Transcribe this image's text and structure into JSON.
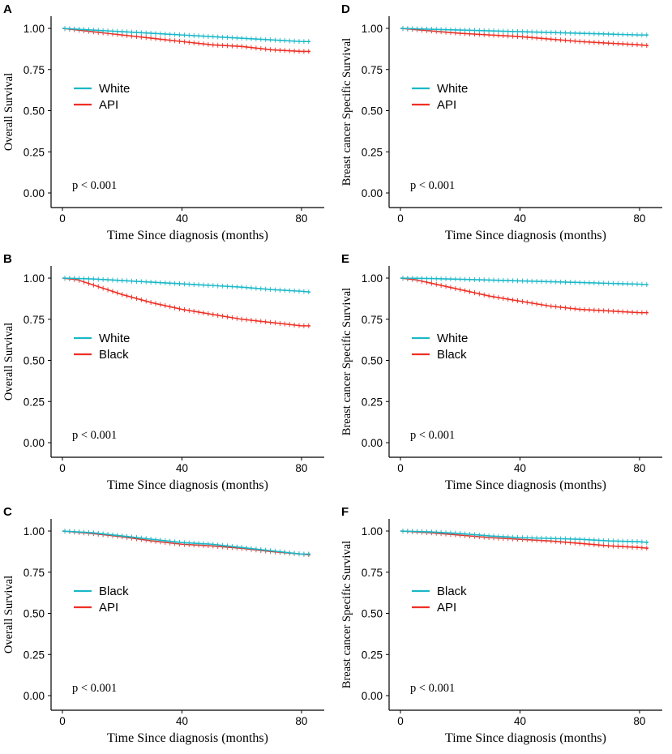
{
  "colors": {
    "white": "#1ab8c8",
    "second": "#ee2f24",
    "axis": "#000000"
  },
  "chart_data": [
    {
      "type": "line",
      "panel": "A",
      "ylabel": "Overall Survival",
      "xlabel": "Time Since diagnosis (months)",
      "xlim": [
        0,
        83
      ],
      "ylim": [
        0,
        1.0
      ],
      "xticks": [
        "0",
        "40",
        "80"
      ],
      "yticks": [
        "0.00",
        "0.25",
        "0.50",
        "0.75",
        "1.00"
      ],
      "legend": [
        "White",
        "API"
      ],
      "pvalue": "p < 0.001",
      "series": [
        {
          "name": "White",
          "x": [
            0,
            10,
            20,
            30,
            40,
            50,
            60,
            70,
            80,
            83
          ],
          "values": [
            1.0,
            0.99,
            0.98,
            0.97,
            0.96,
            0.95,
            0.94,
            0.93,
            0.92,
            0.92
          ]
        },
        {
          "name": "API",
          "x": [
            0,
            10,
            20,
            30,
            40,
            50,
            60,
            70,
            80,
            83
          ],
          "values": [
            1.0,
            0.98,
            0.96,
            0.94,
            0.92,
            0.9,
            0.89,
            0.87,
            0.86,
            0.86
          ]
        }
      ]
    },
    {
      "type": "line",
      "panel": "B",
      "ylabel": "Overall Survival",
      "xlabel": "Time Since diagnosis (months)",
      "xlim": [
        0,
        83
      ],
      "ylim": [
        0,
        1.0
      ],
      "xticks": [
        "0",
        "40",
        "80"
      ],
      "yticks": [
        "0.00",
        "0.25",
        "0.50",
        "0.75",
        "1.00"
      ],
      "legend": [
        "White",
        "Black"
      ],
      "pvalue": "p < 0.001",
      "series": [
        {
          "name": "White",
          "x": [
            0,
            10,
            20,
            30,
            40,
            50,
            60,
            70,
            80,
            83
          ],
          "values": [
            1.0,
            0.995,
            0.985,
            0.975,
            0.965,
            0.955,
            0.945,
            0.93,
            0.92,
            0.915
          ]
        },
        {
          "name": "Black",
          "x": [
            0,
            5,
            10,
            20,
            30,
            40,
            50,
            60,
            70,
            80,
            83
          ],
          "values": [
            1.0,
            0.99,
            0.96,
            0.9,
            0.85,
            0.81,
            0.78,
            0.75,
            0.73,
            0.71,
            0.71
          ]
        }
      ]
    },
    {
      "type": "line",
      "panel": "C",
      "ylabel": "Overall Survival",
      "xlabel": "Time Since diagnosis (months)",
      "xlim": [
        0,
        83
      ],
      "ylim": [
        0,
        1.0
      ],
      "xticks": [
        "0",
        "40",
        "80"
      ],
      "yticks": [
        "0.00",
        "0.25",
        "0.50",
        "0.75",
        "1.00"
      ],
      "legend": [
        "Black",
        "API"
      ],
      "pvalue": "p < 0.001",
      "series": [
        {
          "name": "Black",
          "x": [
            0,
            10,
            20,
            30,
            40,
            50,
            60,
            70,
            80,
            83
          ],
          "values": [
            1.0,
            0.99,
            0.97,
            0.95,
            0.93,
            0.92,
            0.9,
            0.88,
            0.86,
            0.86
          ]
        },
        {
          "name": "API",
          "x": [
            0,
            10,
            20,
            30,
            40,
            50,
            60,
            70,
            80,
            83
          ],
          "values": [
            1.0,
            0.985,
            0.965,
            0.94,
            0.92,
            0.91,
            0.895,
            0.875,
            0.86,
            0.855
          ]
        }
      ]
    },
    {
      "type": "line",
      "panel": "D",
      "ylabel": "Breast cancer Specific Survival",
      "xlabel": "Time Since diagnosis (months)",
      "xlim": [
        0,
        83
      ],
      "ylim": [
        0,
        1.0
      ],
      "xticks": [
        "0",
        "40",
        "80"
      ],
      "yticks": [
        "0.00",
        "0.25",
        "0.50",
        "0.75",
        "1.00"
      ],
      "legend": [
        "White",
        "API"
      ],
      "pvalue": "p < 0.001",
      "series": [
        {
          "name": "White",
          "x": [
            0,
            10,
            20,
            30,
            40,
            50,
            60,
            70,
            80,
            83
          ],
          "values": [
            1.0,
            0.995,
            0.99,
            0.985,
            0.98,
            0.975,
            0.97,
            0.965,
            0.96,
            0.96
          ]
        },
        {
          "name": "API",
          "x": [
            0,
            10,
            20,
            30,
            40,
            50,
            60,
            70,
            80,
            83
          ],
          "values": [
            1.0,
            0.985,
            0.97,
            0.96,
            0.95,
            0.935,
            0.92,
            0.91,
            0.9,
            0.895
          ]
        }
      ]
    },
    {
      "type": "line",
      "panel": "E",
      "ylabel": "Breast cancer Specific Survival",
      "xlabel": "Time Since diagnosis (months)",
      "xlim": [
        0,
        83
      ],
      "ylim": [
        0,
        1.0
      ],
      "xticks": [
        "0",
        "40",
        "80"
      ],
      "yticks": [
        "0.00",
        "0.25",
        "0.50",
        "0.75",
        "1.00"
      ],
      "legend": [
        "White",
        "Black"
      ],
      "pvalue": "p < 0.001",
      "series": [
        {
          "name": "White",
          "x": [
            0,
            10,
            20,
            30,
            40,
            50,
            60,
            70,
            80,
            83
          ],
          "values": [
            1.0,
            0.997,
            0.993,
            0.988,
            0.983,
            0.978,
            0.973,
            0.968,
            0.963,
            0.96
          ]
        },
        {
          "name": "Black",
          "x": [
            0,
            5,
            10,
            20,
            30,
            40,
            50,
            60,
            70,
            80,
            83
          ],
          "values": [
            1.0,
            0.99,
            0.97,
            0.93,
            0.89,
            0.86,
            0.83,
            0.81,
            0.8,
            0.79,
            0.79
          ]
        }
      ]
    },
    {
      "type": "line",
      "panel": "F",
      "ylabel": "Breast cancer Specific Survival",
      "xlabel": "Time Since diagnosis (months)",
      "xlim": [
        0,
        83
      ],
      "ylim": [
        0,
        1.0
      ],
      "xticks": [
        "0",
        "40",
        "80"
      ],
      "yticks": [
        "0.00",
        "0.25",
        "0.50",
        "0.75",
        "1.00"
      ],
      "legend": [
        "Black",
        "API"
      ],
      "pvalue": "p < 0.001",
      "series": [
        {
          "name": "Black",
          "x": [
            0,
            10,
            20,
            30,
            40,
            50,
            60,
            70,
            80,
            83
          ],
          "values": [
            1.0,
            0.995,
            0.985,
            0.97,
            0.96,
            0.955,
            0.95,
            0.94,
            0.935,
            0.93
          ]
        },
        {
          "name": "API",
          "x": [
            0,
            10,
            20,
            30,
            40,
            50,
            60,
            70,
            80,
            83
          ],
          "values": [
            1.0,
            0.99,
            0.975,
            0.96,
            0.95,
            0.94,
            0.925,
            0.91,
            0.9,
            0.895
          ]
        }
      ]
    }
  ]
}
